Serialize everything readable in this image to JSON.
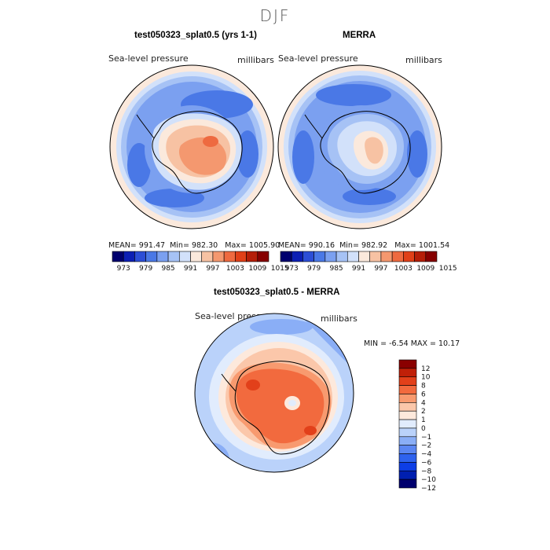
{
  "page": {
    "season": "DJF"
  },
  "panels": [
    {
      "title": "test050323_splat0.5 (yrs 1-1)",
      "variable": "Sea-level pressure",
      "units": "millibars",
      "mean_label": "MEAN=",
      "mean": "991.47",
      "min_label": "Min=",
      "min": "982.30",
      "max_label": "Max=",
      "max": "1005.90"
    },
    {
      "title": "MERRA",
      "variable": "Sea-level pressure",
      "units": "millibars",
      "mean_label": "MEAN=",
      "mean": "990.16",
      "min_label": "Min=",
      "min": "982.92",
      "max_label": "Max=",
      "max": "1001.54"
    }
  ],
  "diff": {
    "title": "test050323_splat0.5 - MERRA",
    "variable": "Sea-level pressure",
    "units": "millibars",
    "min_label": "MIN =",
    "min": "-6.54",
    "max_label": "MAX =",
    "max": "10.17"
  },
  "colors": {
    "slp": [
      "#00006e",
      "#0c1fb4",
      "#2c4ed6",
      "#4a78e6",
      "#7ba0f0",
      "#a6c2f5",
      "#d2e1fa",
      "#fbe9dc",
      "#f7c2a3",
      "#f4986f",
      "#ee6a40",
      "#e04018",
      "#b51e08",
      "#860000"
    ],
    "diff": [
      "#00006e",
      "#001fb0",
      "#0d3ee6",
      "#2e62ee",
      "#5b86f2",
      "#8aaef6",
      "#bad2fa",
      "#e1ecfd",
      "#fde9dc",
      "#fbc7aa",
      "#f89a6f",
      "#f26a3e",
      "#e2401a",
      "#c02008",
      "#8a0000"
    ]
  },
  "chart_data": [
    {
      "type": "heatmap",
      "title": "test050323_splat0.5 (yrs 1-1)",
      "projection": "south-polar stereographic",
      "variable": "Sea-level pressure",
      "units": "millibars",
      "mean": 991.47,
      "min": 982.3,
      "max": 1005.9,
      "levels": [
        973,
        976,
        979,
        982,
        985,
        988,
        991,
        994,
        997,
        1000,
        1003,
        1006,
        1009,
        1012,
        1015
      ],
      "colorbar_labels": [
        "973",
        "979",
        "985",
        "991",
        "997",
        "1003",
        "1009",
        "1015"
      ],
      "colorbar_orientation": "horizontal"
    },
    {
      "type": "heatmap",
      "title": "MERRA",
      "projection": "south-polar stereographic",
      "variable": "Sea-level pressure",
      "units": "millibars",
      "mean": 990.16,
      "min": 982.92,
      "max": 1001.54,
      "levels": [
        973,
        976,
        979,
        982,
        985,
        988,
        991,
        994,
        997,
        1000,
        1003,
        1006,
        1009,
        1012,
        1015
      ],
      "colorbar_labels": [
        "973",
        "979",
        "985",
        "991",
        "997",
        "1003",
        "1009",
        "1015"
      ],
      "colorbar_orientation": "horizontal"
    },
    {
      "type": "heatmap",
      "title": "test050323_splat0.5 - MERRA",
      "projection": "south-polar stereographic",
      "variable": "Sea-level pressure",
      "units": "millibars",
      "min": -6.54,
      "max": 10.17,
      "levels": [
        -12,
        -10,
        -8,
        -6,
        -4,
        -2,
        -1,
        0,
        1,
        2,
        4,
        6,
        8,
        10,
        12
      ],
      "colorbar_labels": [
        "12",
        "10",
        "8",
        "6",
        "4",
        "2",
        "1",
        "0",
        "−1",
        "−2",
        "−4",
        "−6",
        "−8",
        "−10",
        "−12"
      ],
      "colorbar_orientation": "vertical"
    }
  ]
}
